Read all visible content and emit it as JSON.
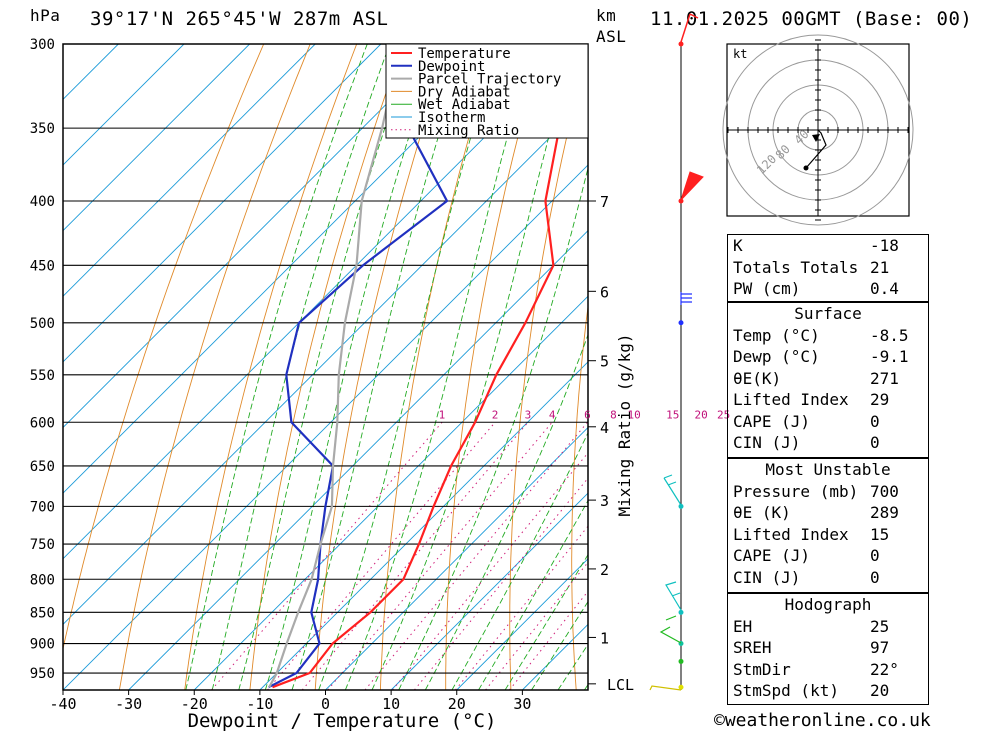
{
  "header": {
    "pressure_unit": "hPa",
    "location": "39°17'N  265°45'W  287m  ASL",
    "km_label": "km",
    "asl_label": "ASL",
    "datetime": "11.01.2025  00GMT  (Base: 00)"
  },
  "chart_data": {
    "type": "line",
    "subtype": "skew-T log-P diagram",
    "xlabel": "Dewpoint / Temperature (°C)",
    "ylabel": "hPa",
    "secondary_ylabel": "Mixing Ratio (g/kg)",
    "xlim": [
      -40,
      40
    ],
    "x_ticks": [
      -40,
      -30,
      -20,
      -10,
      0,
      10,
      20,
      30
    ],
    "pressure_levels": [
      300,
      350,
      400,
      450,
      500,
      550,
      600,
      650,
      700,
      750,
      800,
      850,
      900,
      950
    ],
    "plim": [
      300,
      980
    ],
    "km_ticks": [
      {
        "label": "7",
        "p": 400
      },
      {
        "label": "6",
        "p": 472
      },
      {
        "label": "5",
        "p": 536
      },
      {
        "label": "4",
        "p": 605
      },
      {
        "label": "3",
        "p": 692
      },
      {
        "label": "2",
        "p": 785
      },
      {
        "label": "1",
        "p": 890
      },
      {
        "label": "LCL",
        "p": 969
      }
    ],
    "mixing_ratio_labels": [
      "1",
      "2",
      "3",
      "4",
      "6",
      "8",
      "10",
      "15",
      "20",
      "25"
    ],
    "mixing_ratio_values": [
      1,
      2,
      3,
      4,
      6,
      8,
      10,
      15,
      20,
      25
    ],
    "legend": [
      "Temperature",
      "Dewpoint",
      "Parcel Trajectory",
      "Dry Adiabat",
      "Wet Adiabat",
      "Isotherm",
      "Mixing Ratio"
    ],
    "legend_position": "top-right",
    "series": [
      {
        "name": "Temperature",
        "color": "#ff2020",
        "points": [
          [
            300,
            -58
          ],
          [
            350,
            -50
          ],
          [
            400,
            -41
          ],
          [
            450,
            -30
          ],
          [
            500,
            -25.5
          ],
          [
            550,
            -22
          ],
          [
            600,
            -18
          ],
          [
            650,
            -15
          ],
          [
            700,
            -11.5
          ],
          [
            750,
            -8
          ],
          [
            800,
            -5
          ],
          [
            850,
            -5
          ],
          [
            900,
            -6
          ],
          [
            950,
            -5
          ],
          [
            975,
            -8.5
          ]
        ]
      },
      {
        "name": "Dewpoint",
        "color": "#2030c0",
        "points": [
          [
            300,
            -73
          ],
          [
            350,
            -73
          ],
          [
            400,
            -56
          ],
          [
            450,
            -59
          ],
          [
            500,
            -60
          ],
          [
            550,
            -54
          ],
          [
            600,
            -46
          ],
          [
            650,
            -33
          ],
          [
            700,
            -28
          ],
          [
            750,
            -23
          ],
          [
            800,
            -18
          ],
          [
            850,
            -14
          ],
          [
            900,
            -8
          ],
          [
            950,
            -7
          ],
          [
            975,
            -9.1
          ]
        ]
      },
      {
        "name": "Parcel Trajectory",
        "color": "#aaaaaa",
        "points": [
          [
            300,
            -87
          ],
          [
            350,
            -77
          ],
          [
            400,
            -69
          ],
          [
            450,
            -60
          ],
          [
            500,
            -53
          ],
          [
            550,
            -46
          ],
          [
            600,
            -39
          ],
          [
            650,
            -33
          ],
          [
            700,
            -27
          ],
          [
            750,
            -23
          ],
          [
            800,
            -19
          ],
          [
            850,
            -16
          ],
          [
            900,
            -13
          ],
          [
            950,
            -10
          ],
          [
            975,
            -9
          ]
        ]
      }
    ],
    "grid": true
  },
  "hodograph": {
    "unit_label": "kt",
    "speed_labels": [
      "40",
      "80",
      "120"
    ]
  },
  "indices": {
    "top": [
      {
        "label": "K",
        "value": "-18"
      },
      {
        "label": "Totals Totals",
        "value": "21"
      },
      {
        "label": "PW (cm)",
        "value": "0.4"
      }
    ],
    "surface": {
      "title": "Surface",
      "rows": [
        {
          "label": "Temp (°C)",
          "value": "-8.5"
        },
        {
          "label": "Dewp (°C)",
          "value": "-9.1"
        },
        {
          "label": "θE(K)",
          "value": "271"
        },
        {
          "label": "Lifted Index",
          "value": "29"
        },
        {
          "label": "CAPE (J)",
          "value": "0"
        },
        {
          "label": "CIN (J)",
          "value": "0"
        }
      ]
    },
    "most_unstable": {
      "title": "Most Unstable",
      "rows": [
        {
          "label": "Pressure (mb)",
          "value": "700"
        },
        {
          "label": "θE (K)",
          "value": "289"
        },
        {
          "label": "Lifted Index",
          "value": "15"
        },
        {
          "label": "CAPE (J)",
          "value": "0"
        },
        {
          "label": "CIN (J)",
          "value": "0"
        }
      ]
    },
    "hodograph": {
      "title": "Hodograph",
      "rows": [
        {
          "label": "EH",
          "value": "25"
        },
        {
          "label": "SREH",
          "value": "97"
        },
        {
          "label": "StmDir",
          "value": "22°"
        },
        {
          "label": "StmSpd (kt)",
          "value": "20"
        }
      ]
    }
  },
  "footer": {
    "copyright": "©weatheronline.co.uk"
  }
}
